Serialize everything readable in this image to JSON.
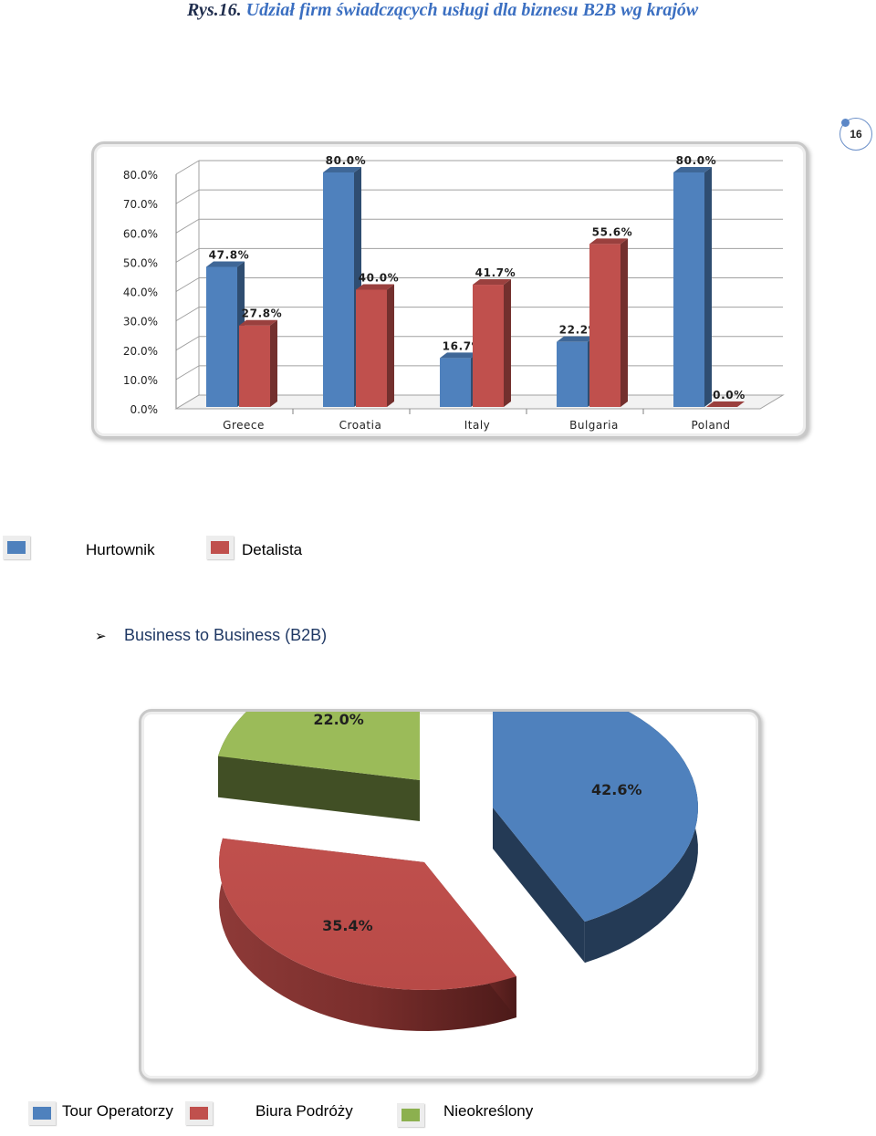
{
  "title": {
    "prefix": "Rys.16.",
    "text": "Udział firm świadczących usługi dla biznesu B2B  wg krajów"
  },
  "page_number": "16",
  "section_heading": "Business to Business (B2B)",
  "bar_legend": [
    {
      "label": "Hurtownik",
      "color": "#4f81bd"
    },
    {
      "label": "Detalista",
      "color": "#c0504d"
    }
  ],
  "pie_legend": [
    {
      "label": "Tour Operatorzy",
      "color": "#4f81bd"
    },
    {
      "label": "Biura Podróży",
      "color": "#c0504d"
    },
    {
      "label": "Nieokreślony",
      "color": "#8cb04f"
    }
  ],
  "chart_data": [
    {
      "type": "bar",
      "categories": [
        "Greece",
        "Croatia",
        "Italy",
        "Bulgaria",
        "Poland"
      ],
      "series": [
        {
          "name": "Hurtownik",
          "values": [
            47.8,
            80.0,
            16.7,
            22.2,
            80.0
          ],
          "color": "#4f81bd"
        },
        {
          "name": "Detalista",
          "values": [
            27.8,
            40.0,
            41.7,
            55.6,
            0.0
          ],
          "color": "#c0504d"
        }
      ],
      "value_labels": [
        [
          "47.8%",
          "80.0%",
          "16.7%",
          "22.2%",
          "80.0%"
        ],
        [
          "27.8%",
          "40.0%",
          "41.7%",
          "55.6%",
          "0.0%"
        ]
      ],
      "yticks": [
        "0.0%",
        "10.0%",
        "20.0%",
        "30.0%",
        "40.0%",
        "50.0%",
        "60.0%",
        "70.0%",
        "80.0%"
      ],
      "ylim": [
        0,
        80
      ],
      "grid": true,
      "style": "3d"
    },
    {
      "type": "pie",
      "slices": [
        {
          "name": "Tour Operatorzy",
          "value": 42.6,
          "label": "42.6%",
          "color": "#4f81bd"
        },
        {
          "name": "Biura Podróży",
          "value": 35.4,
          "label": "35.4%",
          "color": "#c0504d"
        },
        {
          "name": "Nieokreślony",
          "value": 22.0,
          "label": "22.0%",
          "color": "#9bbb59"
        }
      ],
      "style": "3d-exploded"
    }
  ]
}
